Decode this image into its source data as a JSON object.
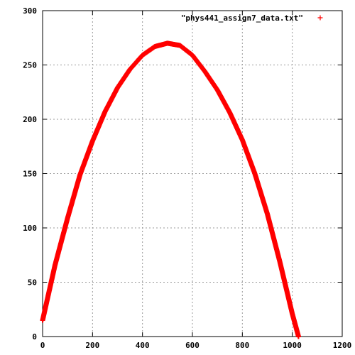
{
  "chart_data": {
    "type": "scatter",
    "title": "",
    "xlabel": "",
    "ylabel": "",
    "xlim": [
      0,
      1200
    ],
    "ylim": [
      0,
      300
    ],
    "x_ticks": [
      0,
      200,
      400,
      600,
      800,
      1000,
      1200
    ],
    "y_ticks": [
      0,
      50,
      100,
      150,
      200,
      250,
      300
    ],
    "x_tick_labels": [
      "0",
      "200",
      "400",
      "600",
      "800",
      "1000",
      "1200"
    ],
    "y_tick_labels": [
      "0",
      "50",
      "100",
      "150",
      "200",
      "250",
      "300"
    ],
    "grid": true,
    "legend_position": "top-right",
    "series": [
      {
        "name": "\"phys441_assign7_data.txt\"",
        "marker": "+",
        "color": "#ff0000",
        "x": [
          0,
          50,
          100,
          150,
          200,
          250,
          300,
          350,
          400,
          450,
          500,
          550,
          600,
          650,
          700,
          750,
          800,
          850,
          900,
          950,
          1000,
          1025
        ],
        "y": [
          15,
          66,
          109,
          149,
          180,
          207,
          229,
          246,
          259,
          267,
          270,
          268,
          259,
          244,
          227,
          206,
          181,
          150,
          113,
          69,
          21,
          0
        ]
      }
    ]
  }
}
